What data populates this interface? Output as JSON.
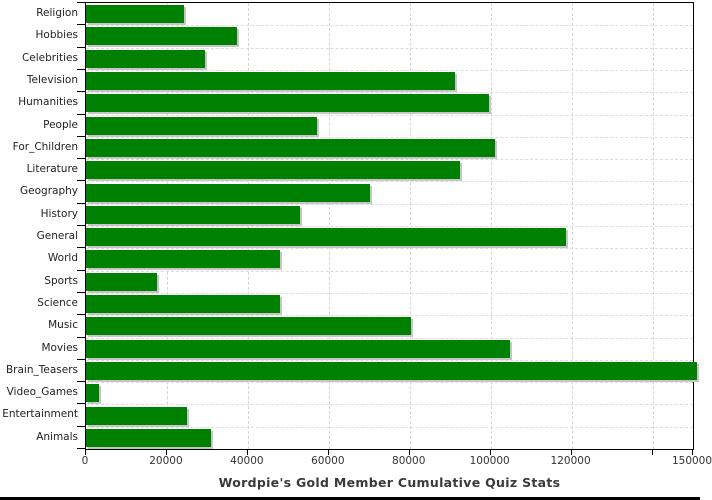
{
  "chart_data": {
    "type": "bar",
    "orientation": "horizontal",
    "title": "Wordpie's Gold Member Cumulative Quiz Stats",
    "categories": [
      "Religion",
      "Hobbies",
      "Celebrities",
      "Television",
      "Humanities",
      "People",
      "For_Children",
      "Literature",
      "Geography",
      "History",
      "General",
      "World",
      "Sports",
      "Science",
      "Music",
      "Movies",
      "Brain_Teasers",
      "Video_Games",
      "Entertainment",
      "Animals"
    ],
    "values": [
      24300,
      37300,
      29400,
      91300,
      99500,
      57200,
      101000,
      92300,
      70300,
      53000,
      118600,
      48000,
      17500,
      48000,
      80400,
      104900,
      151000,
      3200,
      24900,
      30800
    ],
    "xlabel": "",
    "ylabel": "",
    "xlim": [
      0,
      150000
    ],
    "x_ticks": [
      {
        "value": 0,
        "label": "0"
      },
      {
        "value": 20000,
        "label": "20000"
      },
      {
        "value": 40000,
        "label": "40000"
      },
      {
        "value": 60000,
        "label": "60000"
      },
      {
        "value": 80000,
        "label": "80000"
      },
      {
        "value": 100000,
        "label": "100000"
      },
      {
        "value": 120000,
        "label": "120000"
      },
      {
        "value": 140000,
        "label": ""
      },
      {
        "value": 150000,
        "label": "150000",
        "truncated_at_image_edge": true
      }
    ],
    "grid": "dashed",
    "legend": "none",
    "colors": {
      "bar": "#008000",
      "bar_shadow": "#c6c6c6",
      "axis": "#000000",
      "grid_line": "#d4d4d4",
      "tick_label": "#333333",
      "category_label": "#222222",
      "title": "#3a3a3a",
      "background": "#ffffff",
      "bottom_edge": "#000000"
    }
  }
}
